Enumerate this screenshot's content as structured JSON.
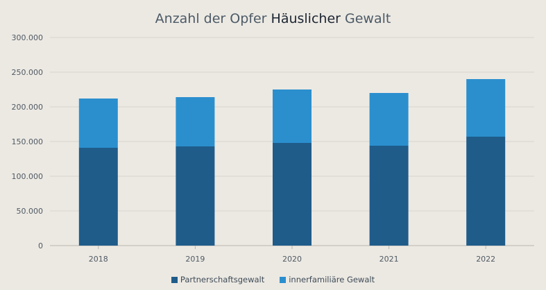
{
  "chart_data": {
    "type": "bar",
    "stacked": true,
    "title_parts": [
      "Anzahl der Opfer ",
      "Häuslicher",
      " Gewalt"
    ],
    "categories": [
      "2018",
      "2019",
      "2020",
      "2021",
      "2022"
    ],
    "series": [
      {
        "name": "Partnerschaftsgewalt",
        "color": "#1f5c8a",
        "values": [
          141000,
          143000,
          148000,
          144000,
          157000
        ]
      },
      {
        "name": "innerfamiliäre Gewalt",
        "color": "#2b8fce",
        "values": [
          71000,
          71000,
          77000,
          76000,
          83000
        ]
      }
    ],
    "ylim": [
      0,
      300000
    ],
    "yticks": [
      "0",
      "50.000",
      "100.000",
      "150.000",
      "200.000",
      "250.000",
      "300.000"
    ],
    "ytick_values": [
      0,
      50000,
      100000,
      150000,
      200000,
      250000,
      300000
    ],
    "grid": true,
    "legend_position": "bottom-center",
    "xlabel": "",
    "ylabel": ""
  }
}
